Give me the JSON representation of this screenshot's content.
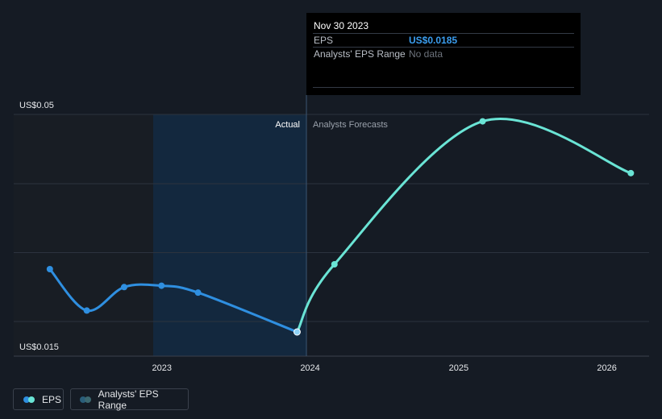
{
  "tooltip": {
    "date": "Nov 30 2023",
    "eps_label": "EPS",
    "eps_value": "US$0.0185",
    "range_label": "Analysts' EPS Range",
    "range_value": "No data"
  },
  "legend": {
    "eps_label": "EPS",
    "range_label": "Analysts' EPS Range"
  },
  "colors": {
    "actual": "#2f8fe0",
    "forecast": "#6ae4d5",
    "background": "#151b24",
    "highlight": "#13283e"
  },
  "chart_data": {
    "type": "line",
    "y_labels": [
      "US$0.05",
      "US$0.015"
    ],
    "x_ticks": [
      "2023",
      "2024",
      "2025",
      "2026"
    ],
    "ylim": [
      0.015,
      0.05
    ],
    "divider_labels": {
      "past": "Actual",
      "future": "Analysts Forecasts"
    },
    "grid": true,
    "series": [
      {
        "name": "EPS",
        "kind": "actual",
        "points": [
          {
            "x": "2022-03-31",
            "y": 0.0276
          },
          {
            "x": "2022-06-30",
            "y": 0.0216
          },
          {
            "x": "2022-09-30",
            "y": 0.025
          },
          {
            "x": "2022-12-31",
            "y": 0.0252
          },
          {
            "x": "2023-03-31",
            "y": 0.0242
          },
          {
            "x": "2023-11-30",
            "y": 0.0185
          }
        ]
      },
      {
        "name": "EPS",
        "kind": "forecast",
        "points": [
          {
            "x": "2023-11-30",
            "y": 0.0185
          },
          {
            "x": "2024-03-01",
            "y": 0.0283
          },
          {
            "x": "2025-03-01",
            "y": 0.049
          },
          {
            "x": "2026-03-01",
            "y": 0.0415
          }
        ]
      }
    ]
  }
}
